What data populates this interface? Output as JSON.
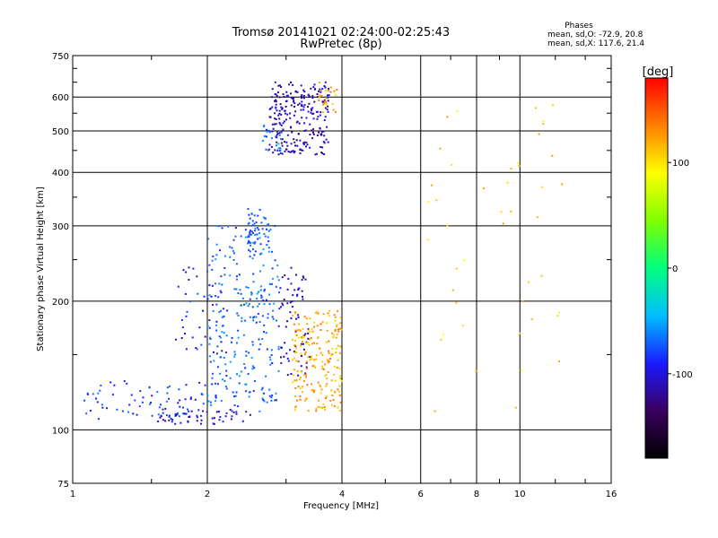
{
  "chart_data": {
    "type": "scatter",
    "title": "Tromsø 20141021 02:24:00-02:25:43",
    "subtitle": "RwPretec (8p)",
    "xlabel": "Frequency [MHz]",
    "ylabel": "Stationary phase Virtual Height [km]",
    "x_scale": "log2",
    "y_scale": "log",
    "xlim": [
      1,
      16
    ],
    "ylim": [
      75,
      750
    ],
    "x_ticks": [
      1,
      2,
      4,
      6,
      8,
      10,
      16
    ],
    "x_tick_labels": [
      "1",
      "2",
      "4",
      "6",
      "8",
      "10",
      "16"
    ],
    "y_ticks": [
      75,
      100,
      200,
      300,
      400,
      500,
      600,
      750
    ],
    "y_tick_labels": [
      "75",
      "100",
      "200",
      "300",
      "400",
      "500",
      "600",
      "750"
    ],
    "x_minor_ticks": [
      1.5,
      3,
      5,
      7,
      9,
      12,
      14
    ],
    "y_minor_ticks": [
      150,
      250,
      350,
      450,
      550,
      650,
      700
    ],
    "grid": true,
    "stats": {
      "heading": "Phases",
      "line_o": "mean, sd,O: -72.9, 20.8",
      "line_x": "mean, sd,X: 117.6, 21.4"
    },
    "colorbar": {
      "label": "[deg]",
      "range": [
        -180,
        180
      ],
      "ticks": [
        100,
        0,
        -100
      ],
      "tick_labels": [
        "100",
        "0",
        "-100"
      ],
      "stops": [
        "#000000",
        "#3a0060",
        "#1a1aff",
        "#00bfff",
        "#00ff7f",
        "#7fff00",
        "#ffff00",
        "#ff8000",
        "#ff0000"
      ]
    },
    "clusters": [
      {
        "name": "",
        "x_range": [
          2.75,
          3.75
        ],
        "y_range": [
          440,
          650
        ],
        "phase": -110,
        "count": 240
      },
      {
        "name": "",
        "x_range": [
          2.65,
          2.95
        ],
        "y_range": [
          450,
          520
        ],
        "phase": -70,
        "count": 25
      },
      {
        "name": "",
        "x_range": [
          3.55,
          3.9
        ],
        "y_range": [
          550,
          650
        ],
        "phase": 120,
        "count": 25
      },
      {
        "name": "",
        "x_range": [
          1.55,
          2.5
        ],
        "y_range": [
          103,
          112
        ],
        "phase": -100,
        "count": 60
      },
      {
        "name": "",
        "x_range": [
          1.05,
          2.0
        ],
        "y_range": [
          106,
          130
        ],
        "phase": -80,
        "count": 70
      },
      {
        "name": "",
        "x_range": [
          2.0,
          2.9
        ],
        "y_range": [
          110,
          300
        ],
        "phase": -70,
        "count": 270
      },
      {
        "name": "",
        "x_range": [
          2.45,
          2.75
        ],
        "y_range": [
          250,
          330
        ],
        "phase": -70,
        "count": 45
      },
      {
        "name": "",
        "x_range": [
          2.9,
          3.4
        ],
        "y_range": [
          130,
          240
        ],
        "phase": -110,
        "count": 70
      },
      {
        "name": "",
        "x_range": [
          3.1,
          4.0
        ],
        "y_range": [
          110,
          190
        ],
        "phase": 120,
        "count": 210
      },
      {
        "name": "",
        "x_range": [
          1.7,
          2.2
        ],
        "y_range": [
          150,
          240
        ],
        "phase": -90,
        "count": 40
      },
      {
        "name": "",
        "x_range": [
          6.2,
          12.5
        ],
        "y_range": [
          110,
          620
        ],
        "phase": 110,
        "count": 45
      }
    ]
  }
}
